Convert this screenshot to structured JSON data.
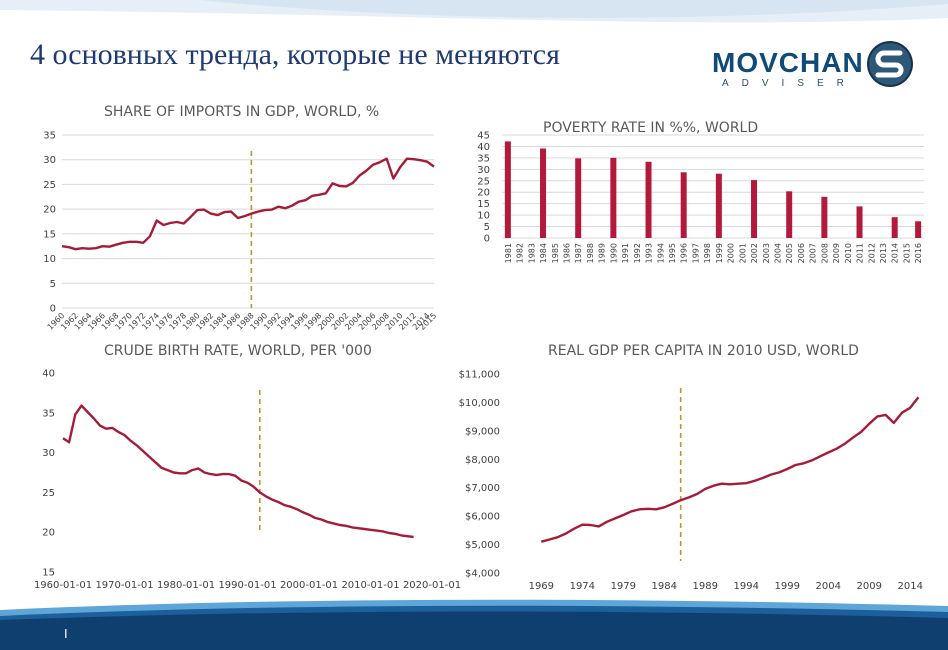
{
  "slide": {
    "title": "4 основных тренда, которые не меняются",
    "page_number": "I"
  },
  "logo": {
    "word": "MOVCHAN",
    "sub": "ADVISER",
    "colors": {
      "primary": "#0f4a78",
      "mark_dark": "#17324f",
      "mark_light": "#9fb3c8"
    }
  },
  "colors": {
    "series": "#a51c38",
    "bars": "#b3193a",
    "marker": "#c5922d",
    "grid": "#d9d9d9",
    "title_text": "#1f3a72",
    "band": "#1d5f9a"
  },
  "chart_data": [
    {
      "type": "line",
      "title": "SHARE OF IMPORTS IN GDP, WORLD, %",
      "ylim": [
        0,
        35
      ],
      "yticks": [
        "0",
        "5",
        "10",
        "15",
        "20",
        "25",
        "30",
        "35"
      ],
      "xlabels": [
        "1960",
        "1962",
        "1964",
        "1966",
        "1968",
        "1970",
        "1972",
        "1974",
        "1976",
        "1978",
        "1980",
        "1982",
        "1984",
        "1986",
        "1988",
        "1990",
        "1992",
        "1994",
        "1996",
        "1998",
        "2000",
        "2002",
        "2004",
        "2006",
        "2008",
        "2010",
        "2012",
        "2014",
        "2015"
      ],
      "grid": true,
      "marker_year": 1988,
      "x": [
        1960,
        1961,
        1962,
        1963,
        1964,
        1965,
        1966,
        1967,
        1968,
        1969,
        1970,
        1971,
        1972,
        1973,
        1974,
        1975,
        1976,
        1977,
        1978,
        1979,
        1980,
        1981,
        1982,
        1983,
        1984,
        1985,
        1986,
        1987,
        1988,
        1989,
        1990,
        1991,
        1992,
        1993,
        1994,
        1995,
        1996,
        1997,
        1998,
        1999,
        2000,
        2001,
        2002,
        2003,
        2004,
        2005,
        2006,
        2007,
        2008,
        2009,
        2010,
        2011,
        2012,
        2013,
        2014,
        2015
      ],
      "values": [
        12.5,
        12.3,
        11.9,
        12.1,
        12.0,
        12.1,
        12.5,
        12.4,
        12.8,
        13.2,
        13.4,
        13.4,
        13.2,
        14.5,
        17.7,
        16.8,
        17.2,
        17.4,
        17.1,
        18.4,
        19.8,
        19.9,
        19.1,
        18.8,
        19.4,
        19.5,
        18.2,
        18.6,
        19.1,
        19.5,
        19.8,
        19.9,
        20.5,
        20.2,
        20.7,
        21.5,
        21.8,
        22.7,
        22.9,
        23.2,
        25.2,
        24.7,
        24.6,
        25.3,
        26.8,
        27.8,
        29.0,
        29.5,
        30.2,
        26.2,
        28.5,
        30.2,
        30.1,
        29.9,
        29.6,
        28.6
      ]
    },
    {
      "type": "bar",
      "title": "POVERTY RATE IN %%, WORLD",
      "ylim": [
        0,
        45
      ],
      "yticks": [
        "0",
        "5",
        "10",
        "15",
        "20",
        "25",
        "30",
        "35",
        "40",
        "45"
      ],
      "categories": [
        "1981",
        "1982",
        "1983",
        "1984",
        "1985",
        "1986",
        "1987",
        "1988",
        "1989",
        "1990",
        "1991",
        "1992",
        "1993",
        "1994",
        "1995",
        "1996",
        "1997",
        "1998",
        "1999",
        "2000",
        "2001",
        "2002",
        "2003",
        "2004",
        "2005",
        "2006",
        "2007",
        "2008",
        "2009",
        "2010",
        "2011",
        "2012",
        "2013",
        "2014",
        "2015",
        "2016"
      ],
      "values": [
        42.2,
        null,
        null,
        39.1,
        null,
        null,
        34.8,
        null,
        null,
        35.0,
        null,
        null,
        33.3,
        null,
        null,
        28.7,
        null,
        null,
        28.1,
        null,
        null,
        25.3,
        null,
        null,
        20.4,
        null,
        null,
        18.0,
        null,
        null,
        13.8,
        null,
        null,
        9.1,
        null,
        7.3
      ],
      "grid": true
    },
    {
      "type": "line",
      "title": "CRUDE BIRTH RATE, WORLD, PER '000",
      "ylim": [
        15,
        40
      ],
      "yticks": [
        "15",
        "20",
        "25",
        "30",
        "35",
        "40"
      ],
      "xlabels": [
        "1960-01-01",
        "1970-01-01",
        "1980-01-01",
        "1990-01-01",
        "2000-01-01",
        "2010-01-01",
        "2020-01-01"
      ],
      "grid": false,
      "marker_year": 1992,
      "x": [
        1960,
        1961,
        1962,
        1963,
        1964,
        1965,
        1966,
        1967,
        1968,
        1969,
        1970,
        1971,
        1972,
        1973,
        1974,
        1975,
        1976,
        1977,
        1978,
        1979,
        1980,
        1981,
        1982,
        1983,
        1984,
        1985,
        1986,
        1987,
        1988,
        1989,
        1990,
        1991,
        1992,
        1993,
        1994,
        1995,
        1996,
        1997,
        1998,
        1999,
        2000,
        2001,
        2002,
        2003,
        2004,
        2005,
        2006,
        2007,
        2008,
        2009,
        2010,
        2011,
        2012,
        2013,
        2014,
        2015,
        2016,
        2017
      ],
      "values": [
        31.8,
        31.3,
        34.8,
        35.9,
        35.1,
        34.3,
        33.4,
        33.0,
        33.1,
        32.6,
        32.2,
        31.5,
        30.9,
        30.2,
        29.5,
        28.8,
        28.1,
        27.8,
        27.5,
        27.4,
        27.4,
        27.8,
        28.0,
        27.5,
        27.3,
        27.2,
        27.3,
        27.3,
        27.1,
        26.5,
        26.2,
        25.7,
        25.0,
        24.5,
        24.1,
        23.8,
        23.4,
        23.2,
        22.9,
        22.5,
        22.2,
        21.8,
        21.6,
        21.3,
        21.1,
        20.9,
        20.8,
        20.6,
        20.5,
        20.4,
        20.3,
        20.2,
        20.1,
        19.9,
        19.8,
        19.6,
        19.5,
        19.4
      ]
    },
    {
      "type": "line",
      "title": "REAL GDP PER CAPITA IN 2010 USD, WORLD",
      "ylim": [
        4000,
        11000
      ],
      "yticks": [
        "$4,000",
        "$5,000",
        "$6,000",
        "$7,000",
        "$8,000",
        "$9,000",
        "$10,000",
        "$11,000"
      ],
      "xlabels": [
        "1969",
        "1974",
        "1979",
        "1984",
        "1989",
        "1994",
        "1999",
        "2004",
        "2009",
        "2014"
      ],
      "grid": false,
      "marker_year": 1986,
      "x": [
        1969,
        1970,
        1971,
        1972,
        1973,
        1974,
        1975,
        1976,
        1977,
        1978,
        1979,
        1980,
        1981,
        1982,
        1983,
        1984,
        1985,
        1986,
        1987,
        1988,
        1989,
        1990,
        1991,
        1992,
        1993,
        1994,
        1995,
        1996,
        1997,
        1998,
        1999,
        2000,
        2001,
        2002,
        2003,
        2004,
        2005,
        2006,
        2007,
        2008,
        2009,
        2010,
        2011,
        2012,
        2013,
        2014,
        2015
      ],
      "values": [
        5100,
        5180,
        5260,
        5390,
        5560,
        5700,
        5690,
        5640,
        5800,
        5920,
        6040,
        6170,
        6240,
        6260,
        6240,
        6310,
        6430,
        6560,
        6660,
        6780,
        6960,
        7070,
        7140,
        7120,
        7140,
        7160,
        7240,
        7340,
        7460,
        7540,
        7660,
        7800,
        7860,
        7960,
        8100,
        8240,
        8370,
        8540,
        8760,
        8960,
        9250,
        9510,
        9560,
        9280,
        9640,
        9810,
        10180
      ]
    }
  ]
}
